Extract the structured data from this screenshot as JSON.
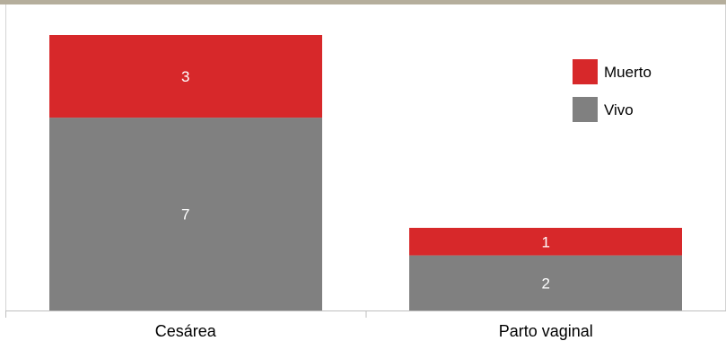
{
  "chart_data": {
    "type": "bar",
    "stacked": true,
    "categories": [
      "Cesárea",
      "Parto vaginal"
    ],
    "series": [
      {
        "name": "Vivo",
        "values": [
          7,
          2
        ],
        "color": "#808080"
      },
      {
        "name": "Muerto",
        "values": [
          3,
          1
        ],
        "color": "#d7282a"
      }
    ],
    "legend_order": [
      "Muerto",
      "Vivo"
    ],
    "ylim": [
      0,
      10.5
    ],
    "grid": false,
    "legend_position": "top-right",
    "title": "",
    "xlabel": "",
    "ylabel": ""
  },
  "colors": {
    "top_border": "#b5ae9c",
    "frame": "#d4d4d4",
    "axis": "#bfbfbf"
  }
}
